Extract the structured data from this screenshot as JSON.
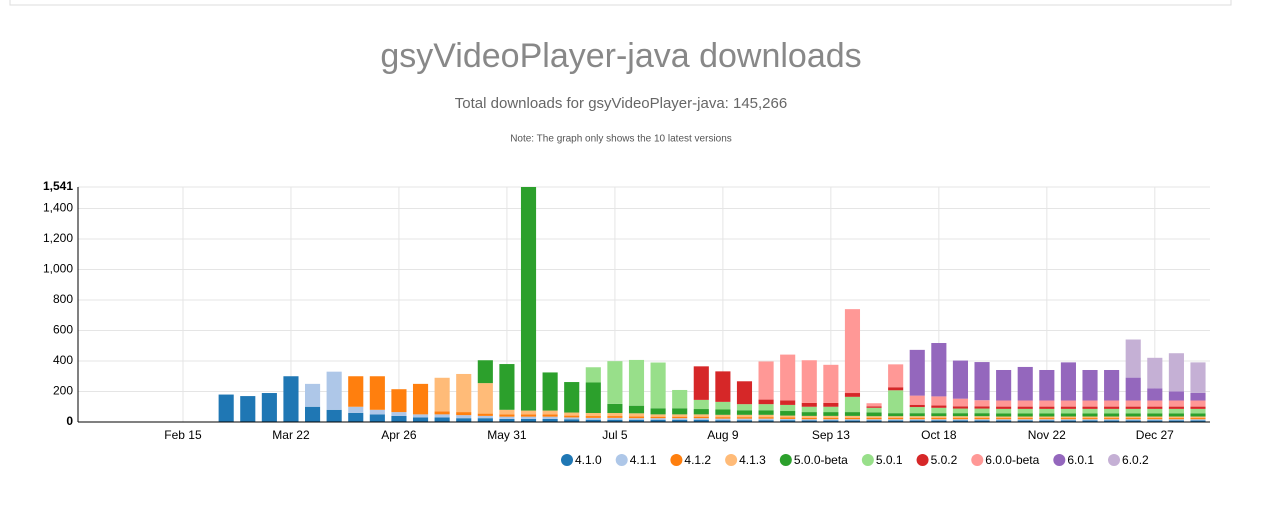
{
  "chart_data": {
    "type": "stacked-bar",
    "title": "gsyVideoPlayer-java downloads",
    "subtitle": "Total downloads for gsyVideoPlayer-java: 145,266",
    "note": "Note: The graph only shows the 10 latest versions",
    "categories": [
      null,
      null,
      null,
      null,
      null,
      "Feb 15",
      null,
      null,
      null,
      null,
      "Mar 22",
      null,
      null,
      null,
      null,
      "Apr 26",
      null,
      null,
      null,
      null,
      "May 31",
      null,
      null,
      null,
      null,
      "Jul 5",
      null,
      null,
      null,
      null,
      "Aug 9",
      null,
      null,
      null,
      null,
      "Sep 13",
      null,
      null,
      null,
      null,
      "Oct 18",
      null,
      null,
      null,
      null,
      "Nov 22",
      null,
      null,
      null,
      null,
      "Dec 27",
      null,
      null
    ],
    "ylim": [
      0,
      1541
    ],
    "yticks": [
      0,
      200,
      400,
      600,
      800,
      {
        "value": 1000,
        "label": "1,000"
      },
      {
        "value": 1200,
        "label": "1,200"
      },
      {
        "value": 1400,
        "label": "1,400"
      },
      {
        "value": 1541,
        "label": "1,541"
      }
    ],
    "grid": true,
    "series": [
      {
        "name": "4.1.0",
        "color": "#1f77b4",
        "values": [
          0,
          0,
          0,
          0,
          0,
          0,
          0,
          180,
          170,
          190,
          300,
          100,
          80,
          60,
          50,
          40,
          30,
          30,
          25,
          25,
          20,
          20,
          20,
          18,
          15,
          15,
          15,
          15,
          15,
          15,
          12,
          12,
          12,
          12,
          10,
          10,
          10,
          10,
          10,
          10,
          10,
          10,
          10,
          10,
          10,
          10,
          10,
          10,
          10,
          10,
          10,
          10,
          10
        ]
      },
      {
        "name": "4.1.1",
        "color": "#aec7e8",
        "values": [
          0,
          0,
          0,
          0,
          0,
          0,
          0,
          0,
          0,
          0,
          0,
          150,
          250,
          40,
          30,
          25,
          20,
          20,
          20,
          15,
          15,
          15,
          15,
          12,
          12,
          12,
          10,
          10,
          10,
          10,
          10,
          10,
          10,
          8,
          8,
          8,
          8,
          8,
          8,
          8,
          8,
          8,
          8,
          8,
          8,
          8,
          8,
          8,
          8,
          8,
          8,
          8,
          8
        ]
      },
      {
        "name": "4.1.2",
        "color": "#ff7f0e",
        "values": [
          0,
          0,
          0,
          0,
          0,
          0,
          0,
          0,
          0,
          0,
          0,
          0,
          0,
          200,
          220,
          150,
          200,
          20,
          20,
          15,
          15,
          15,
          15,
          12,
          12,
          12,
          12,
          10,
          10,
          10,
          10,
          10,
          10,
          10,
          10,
          10,
          10,
          10,
          10,
          10,
          10,
          10,
          10,
          8,
          8,
          8,
          8,
          8,
          8,
          8,
          8,
          8,
          8
        ]
      },
      {
        "name": "4.1.3",
        "color": "#ffbb78",
        "values": [
          0,
          0,
          0,
          0,
          0,
          0,
          0,
          0,
          0,
          0,
          0,
          0,
          0,
          0,
          0,
          0,
          0,
          220,
          250,
          200,
          30,
          25,
          25,
          20,
          20,
          20,
          20,
          15,
          15,
          15,
          15,
          15,
          15,
          12,
          12,
          12,
          12,
          10,
          10,
          10,
          10,
          10,
          10,
          10,
          10,
          10,
          10,
          10,
          10,
          10,
          10,
          10,
          10
        ]
      },
      {
        "name": "5.0.0-beta",
        "color": "#2ca02c",
        "values": [
          0,
          0,
          0,
          0,
          0,
          0,
          0,
          0,
          0,
          0,
          0,
          0,
          0,
          0,
          0,
          0,
          0,
          0,
          0,
          150,
          300,
          1466,
          250,
          200,
          200,
          60,
          50,
          40,
          40,
          35,
          35,
          30,
          30,
          30,
          25,
          25,
          25,
          25,
          20,
          20,
          20,
          20,
          20,
          20,
          20,
          20,
          20,
          20,
          20,
          20,
          20,
          20,
          20
        ]
      },
      {
        "name": "5.0.1",
        "color": "#98df8a",
        "values": [
          0,
          0,
          0,
          0,
          0,
          0,
          0,
          0,
          0,
          0,
          0,
          0,
          0,
          0,
          0,
          0,
          0,
          0,
          0,
          0,
          0,
          0,
          0,
          0,
          100,
          280,
          300,
          300,
          120,
          60,
          50,
          40,
          40,
          40,
          35,
          35,
          100,
          30,
          150,
          40,
          35,
          30,
          30,
          30,
          30,
          30,
          30,
          30,
          30,
          30,
          30,
          30,
          30
        ]
      },
      {
        "name": "5.0.2",
        "color": "#d62728",
        "values": [
          0,
          0,
          0,
          0,
          0,
          0,
          0,
          0,
          0,
          0,
          0,
          0,
          0,
          0,
          0,
          0,
          0,
          0,
          0,
          0,
          0,
          0,
          0,
          0,
          0,
          0,
          0,
          0,
          0,
          220,
          200,
          150,
          30,
          30,
          25,
          25,
          25,
          10,
          20,
          15,
          15,
          15,
          15,
          15,
          15,
          15,
          15,
          15,
          15,
          15,
          15,
          15,
          15
        ]
      },
      {
        "name": "6.0.0-beta",
        "color": "#ff9896",
        "values": [
          0,
          0,
          0,
          0,
          0,
          0,
          0,
          0,
          0,
          0,
          0,
          0,
          0,
          0,
          0,
          0,
          0,
          0,
          0,
          0,
          0,
          0,
          0,
          0,
          0,
          0,
          0,
          0,
          0,
          0,
          0,
          0,
          250,
          300,
          280,
          250,
          550,
          20,
          150,
          60,
          60,
          50,
          40,
          40,
          40,
          40,
          40,
          40,
          40,
          40,
          40,
          40,
          40
        ]
      },
      {
        "name": "6.0.1",
        "color": "#9467bd",
        "values": [
          0,
          0,
          0,
          0,
          0,
          0,
          0,
          0,
          0,
          0,
          0,
          0,
          0,
          0,
          0,
          0,
          0,
          0,
          0,
          0,
          0,
          0,
          0,
          0,
          0,
          0,
          0,
          0,
          0,
          0,
          0,
          0,
          0,
          0,
          0,
          0,
          0,
          0,
          0,
          300,
          350,
          250,
          250,
          200,
          220,
          200,
          250,
          200,
          200,
          150,
          80,
          60,
          50
        ]
      },
      {
        "name": "6.0.2",
        "color": "#c5b0d5",
        "values": [
          0,
          0,
          0,
          0,
          0,
          0,
          0,
          0,
          0,
          0,
          0,
          0,
          0,
          0,
          0,
          0,
          0,
          0,
          0,
          0,
          0,
          0,
          0,
          0,
          0,
          0,
          0,
          0,
          0,
          0,
          0,
          0,
          0,
          0,
          0,
          0,
          0,
          0,
          0,
          0,
          0,
          0,
          0,
          0,
          0,
          0,
          0,
          0,
          0,
          250,
          200,
          250,
          200
        ]
      }
    ]
  }
}
